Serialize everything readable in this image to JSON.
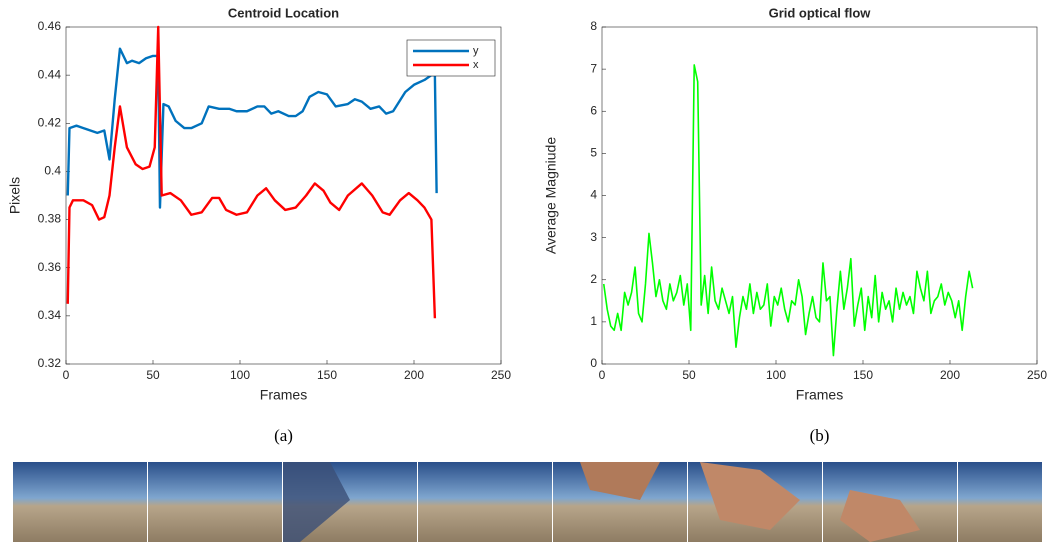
{
  "chart_data": [
    {
      "type": "line",
      "title": "Centroid Location",
      "xlabel": "Frames",
      "ylabel": "Pixels",
      "caption": "(a)",
      "xlim": [
        0,
        250
      ],
      "xticks": [
        0,
        50,
        100,
        150,
        200,
        250
      ],
      "ylim": [
        0.32,
        0.46
      ],
      "yticks": [
        0.32,
        0.34,
        0.36,
        0.38,
        0.4,
        0.42,
        0.44,
        0.46
      ],
      "legend": "top-right",
      "series": [
        {
          "name": "y",
          "color": "#0072bd",
          "x": [
            1,
            2,
            6,
            10,
            18,
            22,
            25,
            28,
            31,
            35,
            38,
            42,
            46,
            50,
            53,
            54,
            56,
            59,
            63,
            68,
            72,
            78,
            82,
            88,
            94,
            98,
            104,
            110,
            114,
            118,
            122,
            128,
            132,
            136,
            140,
            145,
            150,
            155,
            162,
            166,
            170,
            175,
            180,
            184,
            188,
            195,
            200,
            206,
            210,
            212,
            213
          ],
          "values": [
            0.39,
            0.418,
            0.419,
            0.418,
            0.416,
            0.417,
            0.405,
            0.43,
            0.451,
            0.445,
            0.446,
            0.445,
            0.447,
            0.448,
            0.448,
            0.385,
            0.428,
            0.427,
            0.421,
            0.418,
            0.418,
            0.42,
            0.427,
            0.426,
            0.426,
            0.425,
            0.425,
            0.427,
            0.427,
            0.424,
            0.425,
            0.423,
            0.423,
            0.425,
            0.431,
            0.433,
            0.432,
            0.427,
            0.428,
            0.43,
            0.429,
            0.426,
            0.427,
            0.424,
            0.425,
            0.433,
            0.436,
            0.438,
            0.44,
            0.44,
            0.391
          ]
        },
        {
          "name": "x",
          "color": "#ff0000",
          "x": [
            1,
            2,
            4,
            10,
            15,
            19,
            22,
            25,
            28,
            31,
            35,
            40,
            44,
            48,
            51,
            53,
            55,
            60,
            66,
            72,
            78,
            84,
            88,
            92,
            98,
            104,
            110,
            115,
            120,
            126,
            132,
            138,
            143,
            148,
            152,
            157,
            162,
            170,
            176,
            182,
            186,
            192,
            197,
            202,
            206,
            210,
            212
          ],
          "values": [
            0.345,
            0.385,
            0.388,
            0.388,
            0.386,
            0.38,
            0.381,
            0.39,
            0.41,
            0.427,
            0.41,
            0.403,
            0.401,
            0.402,
            0.41,
            0.46,
            0.39,
            0.391,
            0.388,
            0.382,
            0.383,
            0.389,
            0.389,
            0.384,
            0.382,
            0.383,
            0.39,
            0.393,
            0.388,
            0.384,
            0.385,
            0.39,
            0.395,
            0.392,
            0.387,
            0.384,
            0.39,
            0.395,
            0.39,
            0.383,
            0.382,
            0.388,
            0.391,
            0.388,
            0.385,
            0.38,
            0.339
          ]
        }
      ]
    },
    {
      "type": "line",
      "title": "Grid optical flow",
      "xlabel": "Frames",
      "ylabel": "Average Magniude",
      "caption": "(b)",
      "xlim": [
        0,
        250
      ],
      "xticks": [
        0,
        50,
        100,
        150,
        200,
        250
      ],
      "ylim": [
        0,
        8
      ],
      "yticks": [
        0,
        1,
        2,
        3,
        4,
        5,
        6,
        7,
        8
      ],
      "series": [
        {
          "color": "#00ff00",
          "x": [
            1,
            3,
            5,
            7,
            9,
            11,
            13,
            15,
            17,
            19,
            21,
            23,
            25,
            27,
            29,
            31,
            33,
            35,
            37,
            39,
            41,
            43,
            45,
            47,
            49,
            51,
            53,
            55,
            57,
            59,
            61,
            63,
            65,
            67,
            69,
            71,
            73,
            75,
            77,
            79,
            81,
            83,
            85,
            87,
            89,
            91,
            93,
            95,
            97,
            99,
            101,
            103,
            105,
            107,
            109,
            111,
            113,
            115,
            117,
            119,
            121,
            123,
            125,
            127,
            129,
            131,
            133,
            135,
            137,
            139,
            141,
            143,
            145,
            147,
            149,
            151,
            153,
            155,
            157,
            159,
            161,
            163,
            165,
            167,
            169,
            171,
            173,
            175,
            177,
            179,
            181,
            183,
            185,
            187,
            189,
            191,
            193,
            195,
            197,
            199,
            201,
            203,
            205,
            207,
            209,
            211,
            213
          ],
          "values": [
            1.9,
            1.3,
            0.9,
            0.8,
            1.2,
            0.8,
            1.7,
            1.4,
            1.7,
            2.3,
            1.2,
            1.0,
            1.9,
            3.1,
            2.4,
            1.6,
            2.0,
            1.5,
            1.3,
            1.9,
            1.5,
            1.7,
            2.1,
            1.4,
            1.9,
            0.8,
            7.1,
            6.7,
            1.4,
            2.1,
            1.2,
            2.3,
            1.5,
            1.3,
            1.8,
            1.5,
            1.2,
            1.6,
            0.4,
            1.1,
            1.6,
            1.3,
            1.9,
            1.2,
            1.7,
            1.3,
            1.4,
            1.9,
            0.9,
            1.6,
            1.4,
            1.8,
            1.3,
            1.0,
            1.5,
            1.4,
            2.0,
            1.6,
            0.7,
            1.2,
            1.6,
            1.1,
            1.0,
            2.4,
            1.5,
            1.6,
            0.2,
            1.3,
            2.2,
            1.3,
            1.8,
            2.5,
            0.9,
            1.4,
            1.8,
            0.8,
            1.6,
            1.1,
            2.1,
            1.0,
            1.7,
            1.3,
            1.5,
            1.0,
            1.8,
            1.3,
            1.7,
            1.4,
            1.6,
            1.2,
            2.2,
            1.8,
            1.5,
            2.2,
            1.2,
            1.5,
            1.6,
            1.9,
            1.4,
            1.7,
            1.5,
            1.1,
            1.5,
            0.8,
            1.6,
            2.2,
            1.8
          ]
        }
      ]
    }
  ]
}
